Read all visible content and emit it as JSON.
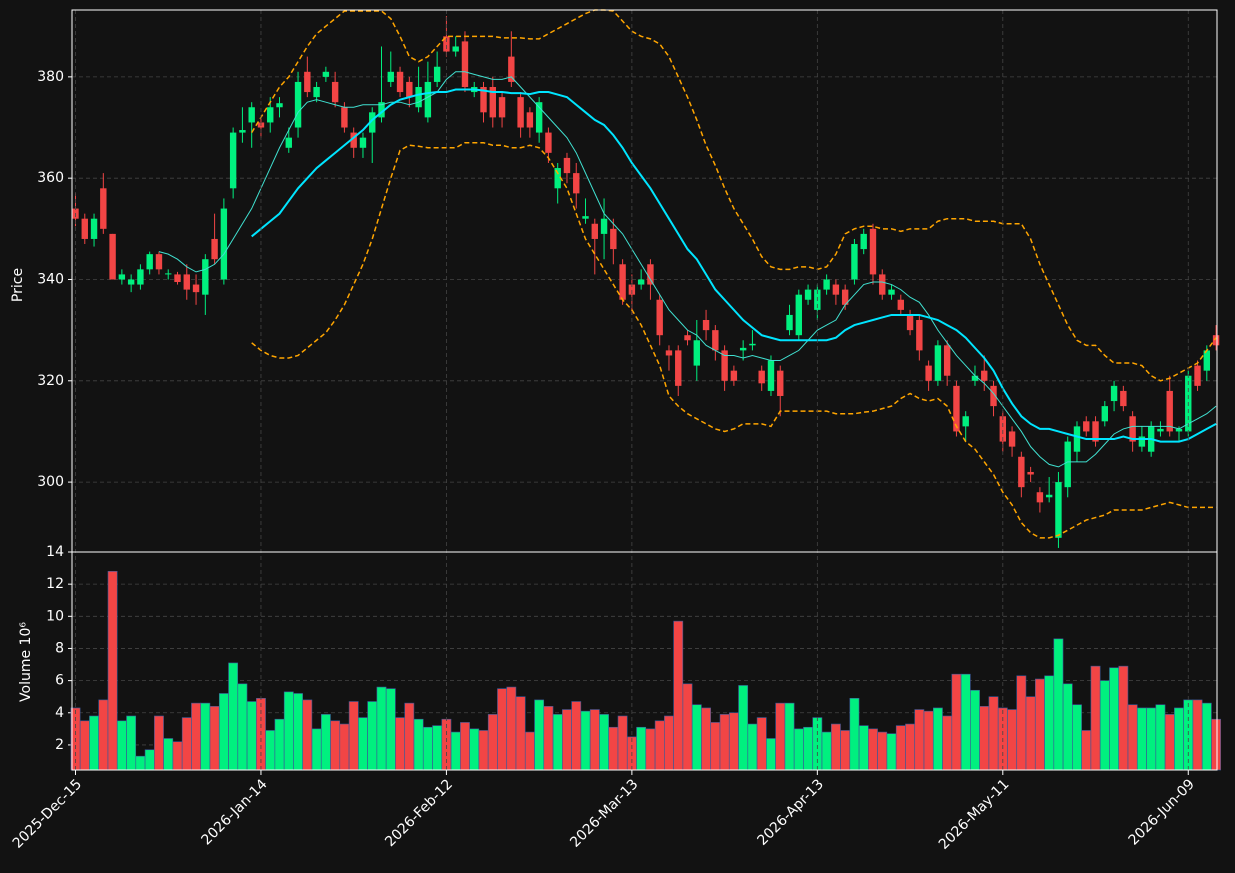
{
  "chart_data": [
    {
      "type": "candlestick",
      "ylabel": "Price",
      "ylim": [
        286.2,
        393.2
      ],
      "yticks": [
        300,
        320,
        340,
        360,
        380
      ],
      "grid": true,
      "up_color": "#00f07f",
      "down_color": "#f24545",
      "open": [
        354,
        352,
        348,
        358,
        349,
        340,
        339,
        339,
        342,
        345,
        341,
        341,
        341,
        339,
        337,
        348,
        340,
        358,
        369,
        371,
        371,
        371,
        374,
        366,
        370,
        381,
        376,
        380,
        379,
        374,
        369,
        366,
        369,
        372,
        379,
        381,
        379,
        374,
        372,
        379,
        388,
        385,
        387,
        377,
        378,
        378,
        376,
        384,
        376,
        373,
        369,
        369,
        358,
        364,
        361,
        352,
        351,
        349,
        350,
        343,
        339,
        339,
        343,
        336,
        326,
        326,
        329,
        323,
        332,
        330,
        326,
        322,
        326,
        327,
        322,
        318,
        322,
        330,
        329,
        336,
        334,
        338,
        339,
        338,
        340,
        346,
        350,
        341,
        337,
        336,
        333,
        332,
        323,
        320,
        327,
        319,
        311,
        320,
        322,
        319,
        313,
        310,
        305,
        302,
        298,
        297,
        289,
        299,
        306,
        312,
        312,
        312,
        316,
        318,
        313,
        307,
        306,
        310,
        318,
        310,
        310,
        323,
        322,
        329
      ],
      "high": [
        357,
        353,
        353,
        361,
        349,
        342,
        341,
        343,
        345.5,
        345.5,
        342,
        341.5,
        343,
        341,
        345,
        353,
        356,
        370,
        374,
        375,
        372,
        376,
        376,
        370,
        381,
        384,
        379,
        382,
        381,
        375,
        370,
        369,
        374,
        386,
        385,
        382,
        380,
        382,
        383,
        385,
        392,
        388,
        389,
        379,
        379,
        380,
        377,
        389,
        377,
        374,
        376,
        370,
        363,
        365,
        363,
        356,
        352,
        356,
        352,
        344,
        341,
        342,
        344,
        337,
        327,
        327,
        330,
        332,
        334,
        331,
        327,
        323,
        328,
        330,
        323,
        325,
        323,
        335,
        338,
        339,
        339,
        341,
        340,
        339,
        348,
        350,
        351,
        342,
        339,
        337,
        334,
        333,
        324,
        328,
        328,
        320,
        314,
        323,
        325,
        320,
        314,
        311,
        306,
        303,
        299,
        301,
        302,
        309,
        312,
        313,
        313,
        316,
        320,
        319,
        314,
        311,
        312,
        312,
        321,
        311,
        322,
        324,
        327,
        331
      ],
      "low": [
        350.5,
        347,
        346.5,
        349,
        340,
        339,
        337.5,
        338,
        341,
        341,
        340,
        339,
        336,
        335,
        333,
        343,
        339,
        356,
        367,
        366,
        368,
        369,
        372,
        365,
        368,
        376,
        375,
        379,
        374,
        369,
        364,
        364,
        363,
        371,
        378,
        376,
        374,
        373,
        371,
        378,
        384,
        384,
        377,
        376,
        371,
        370,
        370,
        378,
        368,
        368,
        367,
        363,
        355,
        359,
        354,
        351,
        341,
        344,
        343,
        335,
        333,
        338,
        336,
        327,
        322,
        317,
        327,
        320,
        328,
        324,
        318,
        319,
        324,
        326,
        318,
        317,
        313,
        329,
        328,
        335,
        332,
        337,
        335,
        334,
        339,
        345,
        339,
        336,
        336,
        333,
        329,
        324,
        318,
        319,
        319,
        309,
        308,
        319,
        318,
        313,
        306,
        305,
        297,
        300,
        294,
        296,
        287,
        297,
        304,
        309,
        307,
        311,
        314,
        314,
        306,
        306,
        305,
        309,
        309,
        308,
        309,
        318,
        320,
        326
      ],
      "close": [
        352,
        348,
        352,
        350,
        340,
        341,
        340,
        342,
        345,
        342,
        341.2,
        339.5,
        338,
        337.5,
        344,
        344,
        354,
        369,
        369.5,
        374,
        370,
        374,
        374.8,
        368,
        379,
        377,
        378,
        381,
        375,
        370,
        366,
        368,
        373,
        375,
        381,
        377,
        376,
        378,
        379,
        382,
        385,
        386,
        378,
        378,
        373,
        372,
        372,
        379,
        370,
        370,
        375,
        365,
        362,
        361,
        357,
        352.5,
        348,
        352,
        346,
        336,
        337,
        340,
        339,
        329,
        325,
        319,
        328,
        328,
        330,
        326,
        320,
        320,
        326.5,
        327.3,
        319.5,
        324,
        317,
        333,
        337,
        338,
        338,
        340,
        337,
        335,
        347,
        349,
        341,
        337,
        338,
        334,
        330,
        326,
        320,
        327,
        321,
        310,
        313,
        321,
        320,
        315,
        308,
        307,
        299,
        301.5,
        296,
        297.5,
        300,
        308,
        311,
        310,
        308,
        315,
        319,
        315,
        308,
        309,
        311,
        310.5,
        310,
        310.5,
        321,
        319,
        326,
        327
      ],
      "lines": [
        {
          "color": "#40e0d0",
          "width": 1,
          "dashed": false,
          "values": [
            null,
            null,
            null,
            null,
            null,
            null,
            null,
            null,
            null,
            345.5,
            345,
            344,
            342.5,
            341.5,
            342,
            343,
            345,
            348,
            351,
            354,
            358,
            362,
            366,
            369.5,
            373,
            375,
            375.5,
            375,
            374.5,
            374,
            374,
            374.5,
            374.5,
            374.5,
            375,
            375,
            374.5,
            375,
            376,
            377,
            379.5,
            381,
            381,
            380.5,
            380,
            379.5,
            379.5,
            380,
            378,
            376,
            374,
            372,
            370,
            368,
            365,
            361,
            357,
            353,
            351,
            349,
            346,
            343,
            340,
            337,
            334,
            332,
            330,
            329,
            327,
            326,
            325,
            325,
            324.5,
            325,
            324.5,
            324,
            324,
            325,
            326,
            328,
            330,
            331,
            332,
            335,
            337,
            339,
            339.5,
            339.5,
            339,
            338,
            336.5,
            335.5,
            333,
            330,
            327.5,
            325,
            323,
            321,
            319.5,
            317.5,
            315,
            312.5,
            310,
            307,
            305,
            303.5,
            303,
            304,
            304,
            304,
            305.5,
            307.5,
            309.5,
            310.5,
            311,
            311,
            311,
            311,
            311,
            310.5,
            311.5,
            312.5,
            313.5,
            315
          ]
        },
        {
          "color": "#00e5ff",
          "width": 2,
          "dashed": false,
          "values": [
            null,
            null,
            null,
            null,
            null,
            null,
            null,
            null,
            null,
            null,
            null,
            null,
            null,
            null,
            null,
            null,
            null,
            null,
            null,
            348.5,
            350,
            351.5,
            353,
            355.5,
            358,
            360,
            362,
            363.5,
            365,
            366.5,
            368,
            369.5,
            371.5,
            373,
            374.5,
            375.5,
            376,
            376.5,
            376.8,
            377,
            377,
            377.5,
            377.5,
            377.5,
            377.3,
            377,
            377,
            376.8,
            376.8,
            376.6,
            377,
            377,
            376.5,
            376,
            374.5,
            373,
            371.5,
            370.5,
            368.5,
            366,
            363,
            360.5,
            358,
            355,
            352,
            349,
            346,
            344,
            341,
            338,
            336,
            334,
            332,
            330.5,
            329,
            328.5,
            328,
            328,
            328,
            328,
            328,
            328,
            328.5,
            330,
            331,
            331.5,
            332,
            332.5,
            333,
            333,
            333,
            333,
            332.5,
            332,
            331,
            330,
            328.5,
            326.5,
            324.5,
            322,
            318.5,
            315.5,
            313,
            311.5,
            310.5,
            310.5,
            310,
            309.5,
            309,
            308.5,
            308.5,
            308.5,
            308.5,
            309,
            308.5,
            308.5,
            308.5,
            308,
            308,
            308,
            308.5,
            309.5,
            310.5,
            311.5
          ]
        },
        {
          "color": "#ffa500",
          "width": 1.5,
          "dashed": true,
          "values": [
            null,
            null,
            null,
            null,
            null,
            null,
            null,
            null,
            null,
            null,
            null,
            null,
            null,
            null,
            null,
            null,
            null,
            null,
            null,
            369,
            372,
            375,
            378,
            380,
            383,
            386,
            388.5,
            390,
            391.5,
            393,
            393,
            393,
            393,
            393,
            391.5,
            388,
            384,
            383,
            384,
            386,
            388,
            388,
            388,
            388,
            388,
            388,
            387.7,
            387.7,
            387.7,
            387.5,
            387.5,
            388.5,
            389.5,
            390.5,
            391.5,
            392.5,
            393.2,
            393.2,
            393,
            391,
            389,
            388,
            387.5,
            386.5,
            384,
            380,
            376,
            371.5,
            366.5,
            362.5,
            358,
            354,
            351,
            348,
            344.5,
            342.5,
            342,
            342,
            342.5,
            342.5,
            342,
            342.5,
            345,
            349,
            350,
            350.5,
            350.5,
            350,
            350,
            349.5,
            350,
            350,
            350,
            351.5,
            352,
            352,
            352,
            351.5,
            351.5,
            351.5,
            351,
            351,
            351,
            348,
            343,
            339,
            335,
            331,
            328,
            327,
            327,
            325,
            323.5,
            323.5,
            323.5,
            323,
            321,
            320,
            320.5,
            321.5,
            322.5,
            323.5,
            326,
            328.5
          ]
        },
        {
          "color": "#ffa500",
          "width": 1.5,
          "dashed": true,
          "values": [
            null,
            null,
            null,
            null,
            null,
            null,
            null,
            null,
            null,
            null,
            null,
            null,
            null,
            null,
            null,
            null,
            null,
            null,
            null,
            327.5,
            326,
            325,
            324.5,
            324.5,
            325,
            326.5,
            328,
            329.5,
            332,
            335,
            339,
            343,
            348,
            354,
            360,
            365.5,
            366.5,
            366.3,
            366,
            366,
            366,
            366,
            367,
            367,
            367,
            366.5,
            366.5,
            366,
            366,
            366.5,
            366,
            364,
            361,
            358,
            353,
            348,
            345,
            342,
            339,
            336,
            334,
            331,
            327,
            323,
            317,
            315,
            313.5,
            312.5,
            311.5,
            310.5,
            310,
            310.5,
            311.5,
            311.5,
            311.5,
            311,
            314,
            314,
            314,
            314,
            314,
            314,
            313.5,
            313.5,
            313.5,
            313.8,
            314,
            314.5,
            315,
            316.5,
            317.5,
            316.5,
            316,
            316.5,
            315,
            311,
            308,
            306.5,
            304,
            301.5,
            298,
            295.5,
            292,
            290,
            289,
            289,
            289.5,
            290.5,
            291.5,
            292.5,
            293,
            293.5,
            294.5,
            294.5,
            294.5,
            294.5,
            295,
            295.5,
            296,
            295.5,
            295,
            295,
            295,
            295
          ]
        }
      ]
    },
    {
      "type": "bar",
      "ylabel": "Volume  10⁶",
      "ylim": [
        0.44,
        14
      ],
      "yticks": [
        2,
        4,
        6,
        8,
        10,
        12,
        14
      ],
      "grid": true,
      "categories": [
        "2025-Dec-15",
        null,
        null,
        null,
        null,
        null,
        null,
        null,
        null,
        null,
        null,
        null,
        null,
        null,
        null,
        null,
        null,
        null,
        null,
        null,
        "2026-Jan-14",
        null,
        null,
        null,
        null,
        null,
        null,
        null,
        null,
        null,
        null,
        null,
        null,
        null,
        null,
        null,
        null,
        null,
        null,
        null,
        "2026-Feb-12",
        null,
        null,
        null,
        null,
        null,
        null,
        null,
        null,
        null,
        null,
        null,
        null,
        null,
        null,
        null,
        null,
        null,
        null,
        null,
        "2026-Mar-13",
        null,
        null,
        null,
        null,
        null,
        null,
        null,
        null,
        null,
        null,
        null,
        null,
        null,
        null,
        null,
        null,
        null,
        null,
        null,
        "2026-Apr-13",
        null,
        null,
        null,
        null,
        null,
        null,
        null,
        null,
        null,
        null,
        null,
        null,
        null,
        null,
        null,
        null,
        null,
        null,
        null,
        "2026-May-11",
        null,
        null,
        null,
        null,
        null,
        null,
        null,
        null,
        null,
        null,
        null,
        null,
        null,
        null,
        null,
        null,
        null,
        null,
        null,
        "2026-Jun-09",
        null,
        null,
        null
      ],
      "values": [
        4.3,
        3.5,
        3.8,
        4.8,
        12.8,
        3.5,
        3.8,
        1.3,
        1.7,
        3.8,
        2.4,
        2.2,
        3.7,
        4.6,
        4.6,
        4.4,
        5.2,
        7.1,
        5.8,
        4.7,
        4.9,
        2.9,
        3.6,
        5.3,
        5.2,
        4.8,
        3.0,
        3.9,
        3.5,
        3.3,
        4.7,
        3.7,
        4.7,
        5.6,
        5.5,
        3.7,
        4.6,
        3.6,
        3.1,
        3.2,
        3.6,
        2.8,
        3.4,
        3.0,
        2.9,
        3.9,
        5.5,
        5.6,
        5.0,
        2.8,
        4.8,
        4.4,
        3.9,
        4.2,
        4.7,
        4.1,
        4.2,
        3.9,
        3.1,
        3.8,
        2.5,
        3.1,
        3.0,
        3.5,
        3.8,
        9.7,
        5.8,
        4.5,
        4.3,
        3.4,
        3.9,
        4.0,
        5.7,
        3.3,
        3.7,
        2.4,
        4.6,
        4.6,
        3.0,
        3.1,
        3.7,
        2.8,
        3.3,
        2.9,
        4.9,
        3.2,
        3.0,
        2.8,
        2.7,
        3.2,
        3.3,
        4.2,
        4.1,
        4.3,
        3.8,
        6.4,
        6.4,
        5.4,
        4.4,
        5.0,
        4.3,
        4.2,
        6.3,
        5.0,
        6.1,
        6.3,
        8.6,
        5.8,
        4.5,
        2.9,
        6.9,
        6.0,
        6.8,
        6.9,
        4.5,
        4.3,
        4.3,
        4.5,
        3.9,
        4.3,
        4.8,
        4.8,
        4.6,
        3.6
      ]
    }
  ]
}
